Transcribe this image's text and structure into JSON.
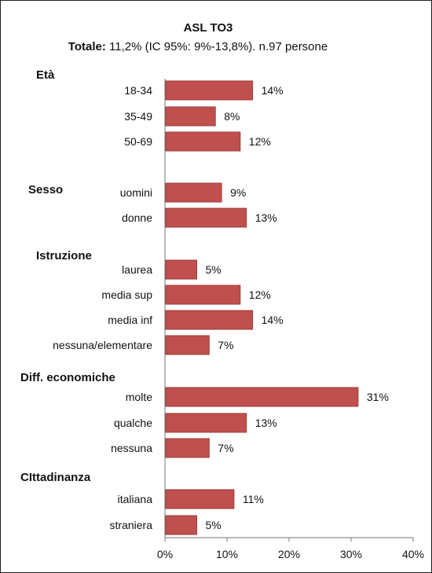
{
  "chart_data": {
    "type": "bar",
    "orientation": "horizontal",
    "title": "ASL TO3",
    "subtitle_label": "Totale:",
    "subtitle_text": "11,2% (IC 95%: 9%-13,8%). n.97 persone",
    "xlim": [
      0,
      40
    ],
    "x_ticks": [
      "0%",
      "10%",
      "20%",
      "30%",
      "40%"
    ],
    "value_suffix": "%",
    "bar_color": "#c0504d",
    "groups": [
      {
        "name": "Età",
        "categories": [
          "18-34",
          "35-49",
          "50-69"
        ],
        "values": [
          14,
          8,
          12
        ]
      },
      {
        "name": "Sesso",
        "categories": [
          "uomini",
          "donne"
        ],
        "values": [
          9,
          13
        ]
      },
      {
        "name": "Istruzione",
        "categories": [
          "laurea",
          "media sup",
          "media inf",
          "nessuna/elementare"
        ],
        "values": [
          5,
          12,
          14,
          7
        ]
      },
      {
        "name": "Diff. economiche",
        "categories": [
          "molte",
          "qualche",
          "nessuna"
        ],
        "values": [
          31,
          13,
          7
        ]
      },
      {
        "name": "CIttadinanza",
        "categories": [
          "italiana",
          "straniera"
        ],
        "values": [
          11,
          5
        ]
      }
    ]
  }
}
